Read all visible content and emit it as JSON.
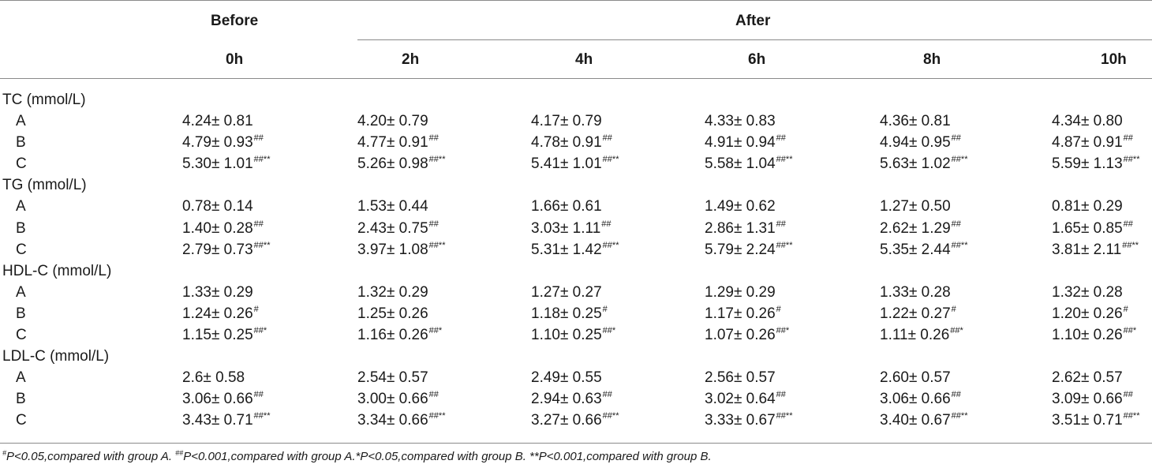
{
  "header": {
    "before": "Before",
    "after": "After",
    "columns": [
      "0h",
      "2h",
      "4h",
      "6h",
      "8h",
      "10h"
    ]
  },
  "rows": [
    {
      "type": "section",
      "label": "TC (mmol/L)"
    },
    {
      "type": "data",
      "label": "A",
      "cells": [
        {
          "value": "4.24± 0.81",
          "sup": ""
        },
        {
          "value": "4.20± 0.79",
          "sup": ""
        },
        {
          "value": "4.17± 0.79",
          "sup": ""
        },
        {
          "value": "4.33± 0.83",
          "sup": ""
        },
        {
          "value": "4.36± 0.81",
          "sup": ""
        },
        {
          "value": "4.34± 0.80",
          "sup": ""
        }
      ]
    },
    {
      "type": "data",
      "label": "B",
      "cells": [
        {
          "value": "4.79± 0.93",
          "sup": "##"
        },
        {
          "value": "4.77± 0.91",
          "sup": "##"
        },
        {
          "value": "4.78± 0.91",
          "sup": "##"
        },
        {
          "value": "4.91± 0.94",
          "sup": "##"
        },
        {
          "value": "4.94± 0.95",
          "sup": "##"
        },
        {
          "value": "4.87± 0.91",
          "sup": "##"
        }
      ]
    },
    {
      "type": "data",
      "label": "C",
      "cells": [
        {
          "value": "5.30± 1.01",
          "sup": "##**"
        },
        {
          "value": "5.26± 0.98",
          "sup": "##**"
        },
        {
          "value": "5.41± 1.01",
          "sup": "##**"
        },
        {
          "value": "5.58± 1.04",
          "sup": "##**"
        },
        {
          "value": "5.63± 1.02",
          "sup": "##**"
        },
        {
          "value": "5.59± 1.13",
          "sup": "##**"
        }
      ]
    },
    {
      "type": "section",
      "label": "TG (mmol/L)"
    },
    {
      "type": "data",
      "label": "A",
      "cells": [
        {
          "value": "0.78± 0.14",
          "sup": ""
        },
        {
          "value": "1.53± 0.44",
          "sup": ""
        },
        {
          "value": "1.66± 0.61",
          "sup": ""
        },
        {
          "value": "1.49± 0.62",
          "sup": ""
        },
        {
          "value": "1.27± 0.50",
          "sup": ""
        },
        {
          "value": "0.81± 0.29",
          "sup": ""
        }
      ]
    },
    {
      "type": "data",
      "label": "B",
      "cells": [
        {
          "value": "1.40± 0.28",
          "sup": "##"
        },
        {
          "value": "2.43± 0.75",
          "sup": "##"
        },
        {
          "value": "3.03± 1.11",
          "sup": "##"
        },
        {
          "value": "2.86± 1.31",
          "sup": "##"
        },
        {
          "value": "2.62± 1.29",
          "sup": "##"
        },
        {
          "value": "1.65± 0.85",
          "sup": "##"
        }
      ]
    },
    {
      "type": "data",
      "label": "C",
      "cells": [
        {
          "value": "2.79± 0.73",
          "sup": "##**"
        },
        {
          "value": "3.97± 1.08",
          "sup": "##**"
        },
        {
          "value": "5.31± 1.42",
          "sup": "##**"
        },
        {
          "value": "5.79± 2.24",
          "sup": "##**"
        },
        {
          "value": "5.35± 2.44",
          "sup": "##**"
        },
        {
          "value": "3.81± 2.11",
          "sup": "##**"
        }
      ]
    },
    {
      "type": "section",
      "label": "HDL-C (mmol/L)"
    },
    {
      "type": "data",
      "label": "A",
      "cells": [
        {
          "value": "1.33± 0.29",
          "sup": ""
        },
        {
          "value": "1.32± 0.29",
          "sup": ""
        },
        {
          "value": "1.27± 0.27",
          "sup": ""
        },
        {
          "value": "1.29± 0.29",
          "sup": ""
        },
        {
          "value": "1.33± 0.28",
          "sup": ""
        },
        {
          "value": "1.32± 0.28",
          "sup": ""
        }
      ]
    },
    {
      "type": "data",
      "label": "B",
      "cells": [
        {
          "value": "1.24± 0.26",
          "sup": "#"
        },
        {
          "value": "1.25± 0.26",
          "sup": ""
        },
        {
          "value": "1.18± 0.25",
          "sup": "#"
        },
        {
          "value": "1.17± 0.26",
          "sup": "#"
        },
        {
          "value": "1.22± 0.27",
          "sup": "#"
        },
        {
          "value": "1.20± 0.26",
          "sup": "#"
        }
      ]
    },
    {
      "type": "data",
      "label": "C",
      "cells": [
        {
          "value": "1.15± 0.25",
          "sup": "##*"
        },
        {
          "value": "1.16± 0.26",
          "sup": "##*"
        },
        {
          "value": "1.10± 0.25",
          "sup": "##*"
        },
        {
          "value": "1.07± 0.26",
          "sup": "##*"
        },
        {
          "value": "1.11± 0.26",
          "sup": "##*"
        },
        {
          "value": "1.10± 0.26",
          "sup": "##*"
        }
      ]
    },
    {
      "type": "section",
      "label": "LDL-C (mmol/L)"
    },
    {
      "type": "data",
      "label": "A",
      "cells": [
        {
          "value": "2.6± 0.58",
          "sup": ""
        },
        {
          "value": "2.54± 0.57",
          "sup": ""
        },
        {
          "value": "2.49± 0.55",
          "sup": ""
        },
        {
          "value": "2.56± 0.57",
          "sup": ""
        },
        {
          "value": "2.60± 0.57",
          "sup": ""
        },
        {
          "value": "2.62± 0.57",
          "sup": ""
        }
      ]
    },
    {
      "type": "data",
      "label": "B",
      "cells": [
        {
          "value": "3.06± 0.66",
          "sup": "##"
        },
        {
          "value": "3.00± 0.66",
          "sup": "##"
        },
        {
          "value": "2.94± 0.63",
          "sup": "##"
        },
        {
          "value": "3.02± 0.64",
          "sup": "##"
        },
        {
          "value": "3.06± 0.66",
          "sup": "##"
        },
        {
          "value": "3.09± 0.66",
          "sup": "##"
        }
      ]
    },
    {
      "type": "data",
      "label": "C",
      "cells": [
        {
          "value": "3.43± 0.71",
          "sup": "##**"
        },
        {
          "value": "3.34± 0.66",
          "sup": "##**"
        },
        {
          "value": "3.27± 0.66",
          "sup": "##**"
        },
        {
          "value": "3.33± 0.67",
          "sup": "##**"
        },
        {
          "value": "3.40± 0.67",
          "sup": "##**"
        },
        {
          "value": "3.51± 0.71",
          "sup": "##**"
        }
      ]
    }
  ],
  "footnote": {
    "parts": [
      {
        "sup": "#"
      },
      {
        "text": "P<0.05,compared with group A. "
      },
      {
        "sup": "##"
      },
      {
        "text": "P<0.001,compared with group A.*P<0.05,compared with group B. **P<0.001,compared with group B."
      }
    ]
  }
}
